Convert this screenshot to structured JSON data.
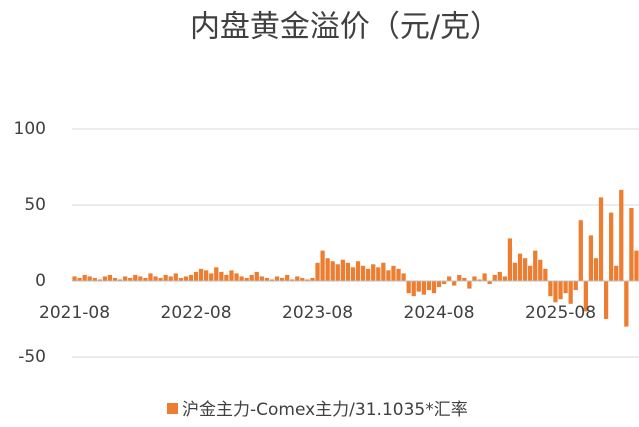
{
  "chart_data": {
    "type": "bar",
    "title": "内盘黄金溢价（元/克）",
    "categories": [
      "2021-08",
      null,
      null,
      null,
      null,
      null,
      null,
      null,
      null,
      null,
      null,
      null,
      null,
      null,
      null,
      null,
      null,
      null,
      null,
      null,
      null,
      null,
      null,
      null,
      "2022-08",
      null,
      null,
      null,
      null,
      null,
      null,
      null,
      null,
      null,
      null,
      null,
      null,
      null,
      null,
      null,
      null,
      null,
      null,
      null,
      null,
      null,
      null,
      null,
      "2023-08",
      null,
      null,
      null,
      null,
      null,
      null,
      null,
      null,
      null,
      null,
      null,
      null,
      null,
      null,
      null,
      null,
      null,
      null,
      null,
      null,
      null,
      null,
      null,
      "2024-08",
      null,
      null,
      null,
      null,
      null,
      null,
      null,
      null,
      null,
      null,
      null,
      null,
      null,
      null,
      null,
      null,
      null,
      null,
      null,
      null,
      null,
      null,
      null,
      "2025-08",
      null,
      null,
      null,
      null,
      null,
      null,
      null,
      null,
      null,
      null,
      null,
      null,
      null,
      null,
      null
    ],
    "series": [
      {
        "name": "沪金主力-Comex主力/31.1035*汇率",
        "color": "#ed7d31",
        "values": [
          3,
          2,
          4,
          3,
          2,
          1,
          3,
          4,
          2,
          1,
          3,
          2,
          4,
          3,
          2,
          5,
          3,
          2,
          4,
          3,
          5,
          2,
          3,
          4,
          6,
          8,
          7,
          5,
          9,
          6,
          4,
          7,
          5,
          3,
          2,
          4,
          6,
          3,
          2,
          1,
          3,
          2,
          4,
          1,
          3,
          2,
          1,
          2,
          12,
          20,
          15,
          13,
          11,
          14,
          12,
          9,
          13,
          10,
          8,
          11,
          9,
          12,
          7,
          10,
          8,
          5,
          -8,
          -10,
          -7,
          -9,
          -6,
          -8,
          -4,
          -2,
          3,
          -3,
          4,
          2,
          -5,
          3,
          1,
          5,
          -2,
          4,
          6,
          3,
          28,
          12,
          18,
          15,
          10,
          20,
          14,
          8,
          -10,
          -14,
          -12,
          -8,
          -15,
          -6,
          40,
          -20,
          30,
          15,
          55,
          -25,
          45,
          10,
          60,
          -30,
          48,
          20
        ]
      }
    ],
    "ylim": [
      -50,
      100
    ],
    "yticks": [
      -50,
      0,
      50,
      100
    ],
    "grid": true,
    "legend": "bottom"
  }
}
